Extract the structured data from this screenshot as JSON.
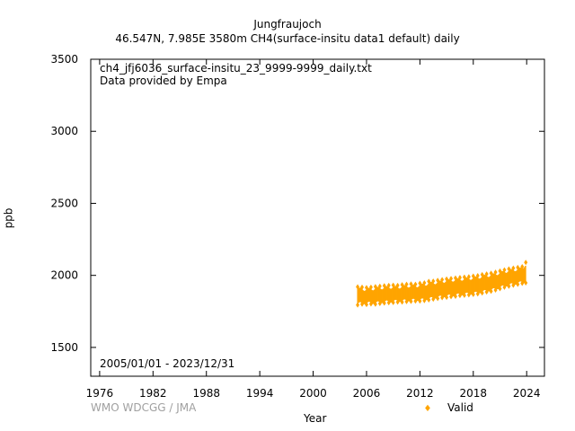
{
  "header": {
    "title": "Jungfraujoch",
    "subtitle": "46.547N, 7.985E 3580m    CH4(surface-insitu data1 default) daily"
  },
  "annotations": {
    "file": "ch4_jfj6036_surface-insitu_23_9999-9999_daily.txt",
    "provider": "Data provided by Empa",
    "period": "2005/01/01 - 2023/12/31"
  },
  "credit": "WMO WDCGG / JMA",
  "colors": {
    "valid": "#ffa500",
    "credit": "#a0a0a0",
    "axis": "#000000"
  },
  "chart_data": {
    "type": "scatter",
    "title": "Jungfraujoch",
    "subtitle": "46.547N, 7.985E 3580m    CH4(surface-insitu data1 default) daily",
    "xlabel": "Year",
    "ylabel": "ppb",
    "xlim": [
      1975,
      2026
    ],
    "ylim": [
      1300,
      3500
    ],
    "x_ticks": [
      1976,
      1982,
      1988,
      1994,
      2000,
      2006,
      2012,
      2018,
      2024
    ],
    "y_ticks": [
      1500,
      2000,
      2500,
      3000,
      3500
    ],
    "grid": false,
    "legend_position": "bottom-right",
    "series": [
      {
        "name": "Valid",
        "color": "#ffa500",
        "x": [
          2005.0,
          2005.5,
          2006.0,
          2006.5,
          2007.0,
          2007.5,
          2008.0,
          2008.5,
          2009.0,
          2009.5,
          2010.0,
          2010.5,
          2011.0,
          2011.5,
          2012.0,
          2012.5,
          2013.0,
          2013.5,
          2014.0,
          2014.5,
          2015.0,
          2015.5,
          2016.0,
          2016.5,
          2017.0,
          2017.5,
          2018.0,
          2018.5,
          2019.0,
          2019.5,
          2020.0,
          2020.5,
          2021.0,
          2021.5,
          2022.0,
          2022.5,
          2023.0,
          2023.5,
          2023.9
        ],
        "y_min": [
          1795,
          1800,
          1798,
          1802,
          1800,
          1805,
          1808,
          1810,
          1812,
          1815,
          1815,
          1818,
          1820,
          1822,
          1822,
          1825,
          1830,
          1835,
          1840,
          1845,
          1848,
          1852,
          1855,
          1860,
          1862,
          1865,
          1868,
          1872,
          1878,
          1885,
          1890,
          1898,
          1908,
          1918,
          1925,
          1932,
          1938,
          1945,
          1948
        ],
        "y_max": [
          1920,
          1918,
          1915,
          1918,
          1922,
          1925,
          1928,
          1930,
          1932,
          1930,
          1935,
          1938,
          1940,
          1938,
          1945,
          1948,
          1958,
          1960,
          1965,
          1970,
          1975,
          1978,
          1982,
          1985,
          1988,
          1990,
          1995,
          1998,
          2005,
          2010,
          2015,
          2022,
          2030,
          2038,
          2045,
          2050,
          2055,
          2060,
          2090
        ],
        "y_mean": [
          1845,
          1848,
          1850,
          1850,
          1852,
          1855,
          1858,
          1860,
          1862,
          1862,
          1865,
          1868,
          1870,
          1870,
          1872,
          1875,
          1882,
          1888,
          1892,
          1898,
          1902,
          1905,
          1910,
          1915,
          1918,
          1920,
          1925,
          1930,
          1935,
          1942,
          1948,
          1955,
          1962,
          1972,
          1980,
          1985,
          1990,
          1995,
          2000
        ]
      }
    ]
  }
}
